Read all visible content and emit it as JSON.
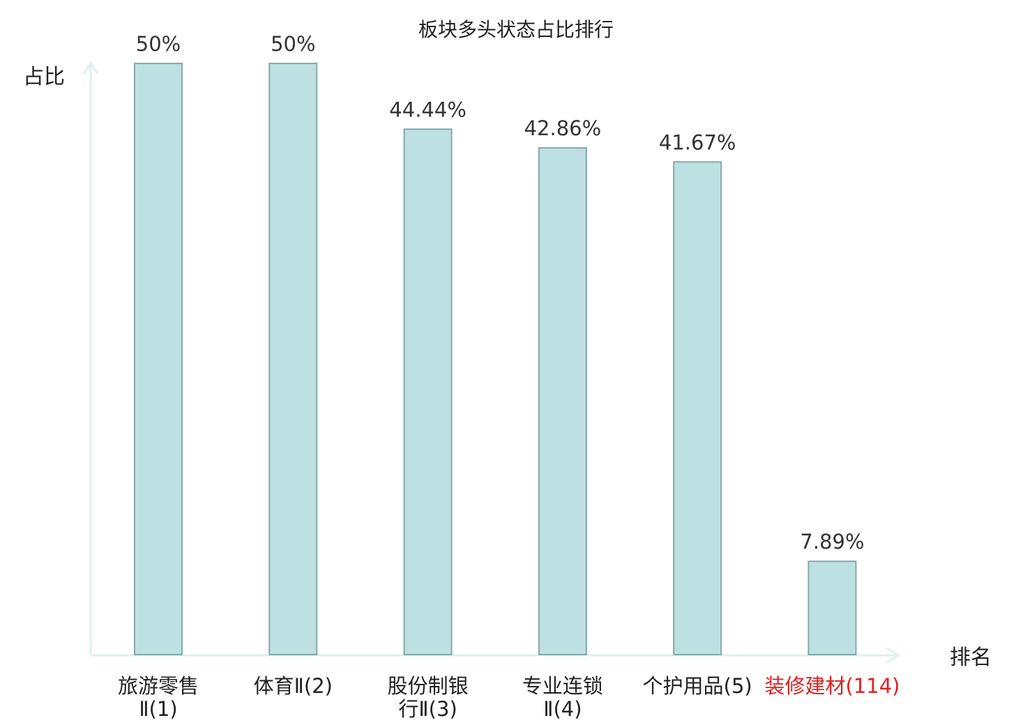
{
  "chart_data": {
    "type": "bar",
    "title": "板块多头状态占比排行",
    "xlabel": "排名",
    "ylabel": "占比",
    "categories": [
      "旅游零售Ⅱ(1)",
      "体育Ⅱ(2)",
      "股份制银行Ⅱ(3)",
      "专业连锁Ⅱ(4)",
      "个护用品(5)",
      "装修建材(114)"
    ],
    "category_label_lines": [
      [
        "旅游零售",
        "Ⅱ(1)"
      ],
      [
        "体育Ⅱ(2)"
      ],
      [
        "股份制银",
        "行Ⅱ(3)"
      ],
      [
        "专业连锁",
        "Ⅱ(4)"
      ],
      [
        "个护用品(5)"
      ],
      [
        "装修建材(114)"
      ]
    ],
    "values": [
      50,
      50,
      44.44,
      42.86,
      41.67,
      7.89
    ],
    "value_labels": [
      "50%",
      "50%",
      "44.44%",
      "42.86%",
      "41.67%",
      "7.89%"
    ],
    "highlight_index": 5,
    "ylim": [
      0,
      50
    ],
    "grid": false,
    "colors": {
      "bar_fill": "#bde0e3",
      "bar_stroke": "#86a8ab",
      "axis": "#dff1ee",
      "highlight_text": "#e02020",
      "text": "#333333"
    }
  }
}
